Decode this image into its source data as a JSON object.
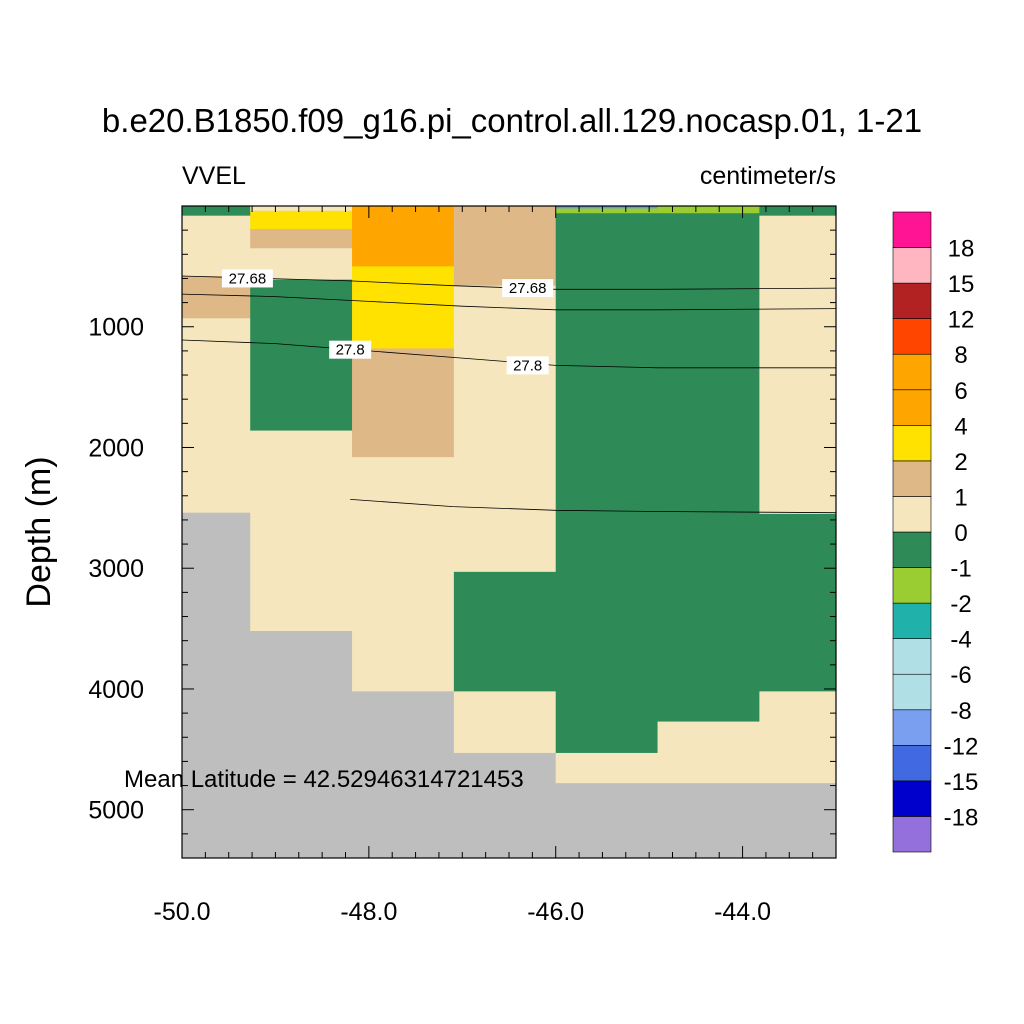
{
  "chart_data": {
    "type": "heatmap",
    "title": "b.e20.B1850.f09_g16.pi_control.all.129.nocasp.01, 1-21",
    "subtitle_left": "VVEL",
    "subtitle_right": "centimeter/s",
    "ylabel": "Depth (m)",
    "xlabel": "",
    "xlim": [
      -50.0,
      -43.0
    ],
    "ylim": [
      0,
      5400
    ],
    "y_inverted": true,
    "x_ticks": [
      {
        "value": -50,
        "label": "-50.0"
      },
      {
        "value": -48,
        "label": "-48.0"
      },
      {
        "value": -46,
        "label": "-46.0"
      },
      {
        "value": -44,
        "label": "-44.0"
      }
    ],
    "y_ticks": [
      {
        "value": 1000,
        "label": "1000"
      },
      {
        "value": 2000,
        "label": "2000"
      },
      {
        "value": 3000,
        "label": "3000"
      },
      {
        "value": 4000,
        "label": "4000"
      },
      {
        "value": 5000,
        "label": "5000"
      }
    ],
    "annotation": "Mean Latitude = 42.52946314721453",
    "missing_color": "#bebebe",
    "cells": [
      {
        "x0": -50.0,
        "x1": -49.27,
        "y0": 0,
        "y1": 80,
        "color": "#2e8b57"
      },
      {
        "x0": -50.0,
        "x1": -49.27,
        "y0": 80,
        "y1": 580,
        "color": "#f5e6be"
      },
      {
        "x0": -50.0,
        "x1": -49.27,
        "y0": 580,
        "y1": 930,
        "color": "#deb887"
      },
      {
        "x0": -50.0,
        "x1": -49.27,
        "y0": 930,
        "y1": 2540,
        "color": "#f5e6be"
      },
      {
        "x0": -50.0,
        "x1": -49.27,
        "y0": 2540,
        "y1": 5400,
        "color": "#bebebe"
      },
      {
        "x0": -49.27,
        "x1": -48.18,
        "y0": 0,
        "y1": 40,
        "color": "#f5e6be"
      },
      {
        "x0": -49.27,
        "x1": -48.18,
        "y0": 40,
        "y1": 190,
        "color": "#ffe200"
      },
      {
        "x0": -49.27,
        "x1": -48.18,
        "y0": 190,
        "y1": 350,
        "color": "#deb887"
      },
      {
        "x0": -49.27,
        "x1": -48.18,
        "y0": 350,
        "y1": 610,
        "color": "#f5e6be"
      },
      {
        "x0": -49.27,
        "x1": -48.18,
        "y0": 610,
        "y1": 1860,
        "color": "#2e8b57"
      },
      {
        "x0": -49.27,
        "x1": -48.18,
        "y0": 1860,
        "y1": 3520,
        "color": "#f5e6be"
      },
      {
        "x0": -49.27,
        "x1": -48.18,
        "y0": 3520,
        "y1": 5400,
        "color": "#bebebe"
      },
      {
        "x0": -48.18,
        "x1": -47.09,
        "y0": 0,
        "y1": 500,
        "color": "#ffa500"
      },
      {
        "x0": -48.18,
        "x1": -47.09,
        "y0": 500,
        "y1": 1180,
        "color": "#ffe200"
      },
      {
        "x0": -48.18,
        "x1": -47.09,
        "y0": 1180,
        "y1": 2080,
        "color": "#deb887"
      },
      {
        "x0": -48.18,
        "x1": -47.09,
        "y0": 2080,
        "y1": 4020,
        "color": "#f5e6be"
      },
      {
        "x0": -48.18,
        "x1": -47.09,
        "y0": 4020,
        "y1": 5400,
        "color": "#bebebe"
      },
      {
        "x0": -47.09,
        "x1": -46.0,
        "y0": 0,
        "y1": 660,
        "color": "#deb887"
      },
      {
        "x0": -47.09,
        "x1": -46.0,
        "y0": 660,
        "y1": 3030,
        "color": "#f5e6be"
      },
      {
        "x0": -47.09,
        "x1": -46.0,
        "y0": 3030,
        "y1": 4020,
        "color": "#2e8b57"
      },
      {
        "x0": -47.09,
        "x1": -46.0,
        "y0": 4020,
        "y1": 4530,
        "color": "#f5e6be"
      },
      {
        "x0": -47.09,
        "x1": -46.0,
        "y0": 4530,
        "y1": 5400,
        "color": "#bebebe"
      },
      {
        "x0": -46.0,
        "x1": -44.91,
        "y0": 0,
        "y1": 20,
        "color": "#6495ed"
      },
      {
        "x0": -46.0,
        "x1": -44.91,
        "y0": 20,
        "y1": 60,
        "color": "#9acd32"
      },
      {
        "x0": -46.0,
        "x1": -44.91,
        "y0": 60,
        "y1": 4530,
        "color": "#2e8b57"
      },
      {
        "x0": -46.0,
        "x1": -44.91,
        "y0": 4530,
        "y1": 4780,
        "color": "#f5e6be"
      },
      {
        "x0": -46.0,
        "x1": -44.91,
        "y0": 4780,
        "y1": 5400,
        "color": "#bebebe"
      },
      {
        "x0": -44.91,
        "x1": -43.82,
        "y0": 0,
        "y1": 60,
        "color": "#9acd32"
      },
      {
        "x0": -44.91,
        "x1": -43.82,
        "y0": 60,
        "y1": 4270,
        "color": "#2e8b57"
      },
      {
        "x0": -44.91,
        "x1": -43.82,
        "y0": 4270,
        "y1": 4780,
        "color": "#f5e6be"
      },
      {
        "x0": -44.91,
        "x1": -43.82,
        "y0": 4780,
        "y1": 5400,
        "color": "#bebebe"
      },
      {
        "x0": -43.82,
        "x1": -43.0,
        "y0": 0,
        "y1": 80,
        "color": "#2e8b57"
      },
      {
        "x0": -43.82,
        "x1": -43.0,
        "y0": 80,
        "y1": 2550,
        "color": "#f5e6be"
      },
      {
        "x0": -43.82,
        "x1": -43.0,
        "y0": 2550,
        "y1": 4020,
        "color": "#2e8b57"
      },
      {
        "x0": -43.82,
        "x1": -43.0,
        "y0": 4020,
        "y1": 4780,
        "color": "#f5e6be"
      },
      {
        "x0": -43.82,
        "x1": -43.0,
        "y0": 4780,
        "y1": 5400,
        "color": "#bebebe"
      }
    ],
    "contours": [
      {
        "level": "27.68",
        "points": [
          [
            -50.0,
            580
          ],
          [
            -48.2,
            620
          ],
          [
            -47.1,
            660
          ],
          [
            -46.0,
            690
          ],
          [
            -44.9,
            690
          ],
          [
            -43.0,
            680
          ]
        ],
        "labels": [
          {
            "x": -49.3,
            "y": 600
          },
          {
            "x": -46.3,
            "y": 680
          }
        ]
      },
      {
        "level": "",
        "points": [
          [
            -50.0,
            730
          ],
          [
            -49.0,
            750
          ],
          [
            -48.0,
            790
          ],
          [
            -47.0,
            830
          ],
          [
            -46.0,
            860
          ],
          [
            -44.9,
            860
          ],
          [
            -43.0,
            850
          ]
        ],
        "labels": []
      },
      {
        "level": "27.8",
        "points": [
          [
            -50.0,
            1110
          ],
          [
            -49.0,
            1140
          ],
          [
            -48.0,
            1200
          ],
          [
            -47.0,
            1260
          ],
          [
            -46.0,
            1320
          ],
          [
            -44.9,
            1340
          ],
          [
            -43.0,
            1340
          ]
        ],
        "labels": [
          {
            "x": -48.2,
            "y": 1190
          },
          {
            "x": -46.3,
            "y": 1320
          }
        ]
      },
      {
        "level": "",
        "points": [
          [
            -48.2,
            2430
          ],
          [
            -47.1,
            2490
          ],
          [
            -46.0,
            2520
          ],
          [
            -44.9,
            2530
          ],
          [
            -43.0,
            2540
          ]
        ],
        "labels": []
      }
    ],
    "colorbar": {
      "colors": [
        "#9370db",
        "#0000cd",
        "#4169e1",
        "#7b9ff0",
        "#b0dfe5",
        "#b0dfe5",
        "#20b2aa",
        "#9acd32",
        "#2e8b57",
        "#f5e6be",
        "#deb887",
        "#ffe200",
        "#ffa500",
        "#ffa500",
        "#ff4500",
        "#b22222",
        "#ffb6c1",
        "#ff1493"
      ],
      "labels": [
        "-18",
        "-15",
        "-12",
        "-8",
        "-6",
        "-4",
        "-2",
        "-1",
        "0",
        "1",
        "2",
        "4",
        "6",
        "8",
        "12",
        "15",
        "18"
      ]
    }
  }
}
